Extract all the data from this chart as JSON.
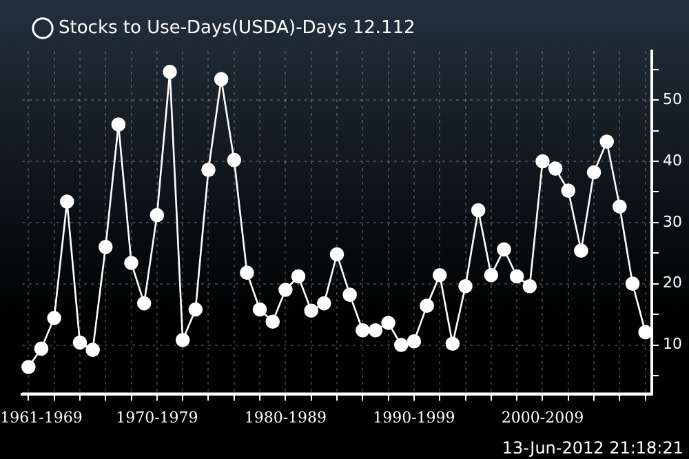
{
  "chart_data": {
    "type": "line",
    "categories": [
      null,
      "1961-1969",
      null,
      null,
      null,
      null,
      null,
      null,
      null,
      null,
      "1970-1979",
      null,
      null,
      null,
      null,
      null,
      null,
      null,
      null,
      null,
      "1980-1989",
      null,
      null,
      null,
      null,
      null,
      null,
      null,
      null,
      null,
      "1990-1999",
      null,
      null,
      null,
      null,
      null,
      null,
      null,
      null,
      null,
      "2000-2009",
      null,
      null,
      null,
      null,
      null,
      null,
      null,
      null
    ],
    "series": [
      {
        "name": "Stocks to Use-Days(USDA)-Days 12.112",
        "color": "#ffffff",
        "values": [
          6.4,
          9.4,
          14.4,
          33.4,
          10.4,
          9.2,
          26,
          46,
          23.4,
          16.8,
          31.2,
          54.6,
          10.8,
          15.8,
          38.6,
          53.4,
          40.2,
          21.8,
          15.8,
          13.8,
          19,
          21.2,
          15.6,
          16.8,
          24.8,
          18.2,
          12.4,
          12.4,
          13.6,
          10,
          10.6,
          16.4,
          21.4,
          10.2,
          19.6,
          32,
          21.4,
          25.6,
          21.2,
          19.6,
          40,
          38.8,
          35.2,
          25.4,
          38.2,
          43.2,
          32.6,
          20,
          12.1
        ]
      }
    ],
    "ylim": [
      2,
      58
    ],
    "yticks": [
      {
        "value": 5,
        "label": null
      },
      10,
      {
        "value": 15,
        "label": null
      },
      20,
      {
        "value": 25,
        "label": null
      },
      30,
      {
        "value": 35,
        "label": null
      },
      40,
      {
        "value": 45,
        "label": null
      },
      50,
      {
        "value": 55,
        "label": null
      }
    ],
    "grid": true,
    "legend": "top left",
    "marker": "circle",
    "line_style": "solid",
    "annotations": [
      "13-Jun-2012 21:18:21"
    ]
  }
}
